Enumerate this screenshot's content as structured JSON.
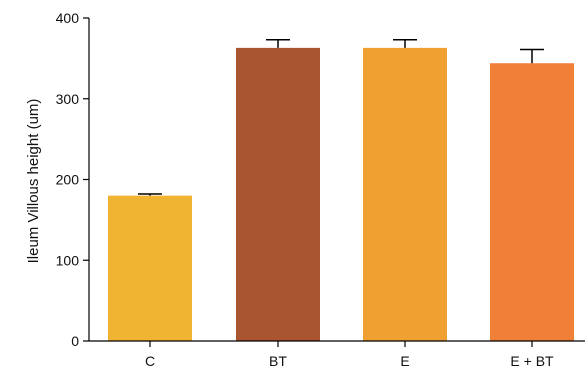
{
  "chart_data": {
    "type": "bar",
    "title": "",
    "xlabel": "",
    "ylabel": "Ileum Villous height (um)",
    "ylim": [
      0,
      400
    ],
    "yticks": [
      0,
      100,
      200,
      300,
      400
    ],
    "categories": [
      "C",
      "BT",
      "E",
      "E + BT"
    ],
    "values": [
      180,
      363,
      363,
      344
    ],
    "error_upper": [
      182,
      373,
      373,
      361
    ],
    "colors": [
      "#F0B432",
      "#A85530",
      "#F0A030",
      "#F08038"
    ],
    "grid": false,
    "legend": "none"
  }
}
